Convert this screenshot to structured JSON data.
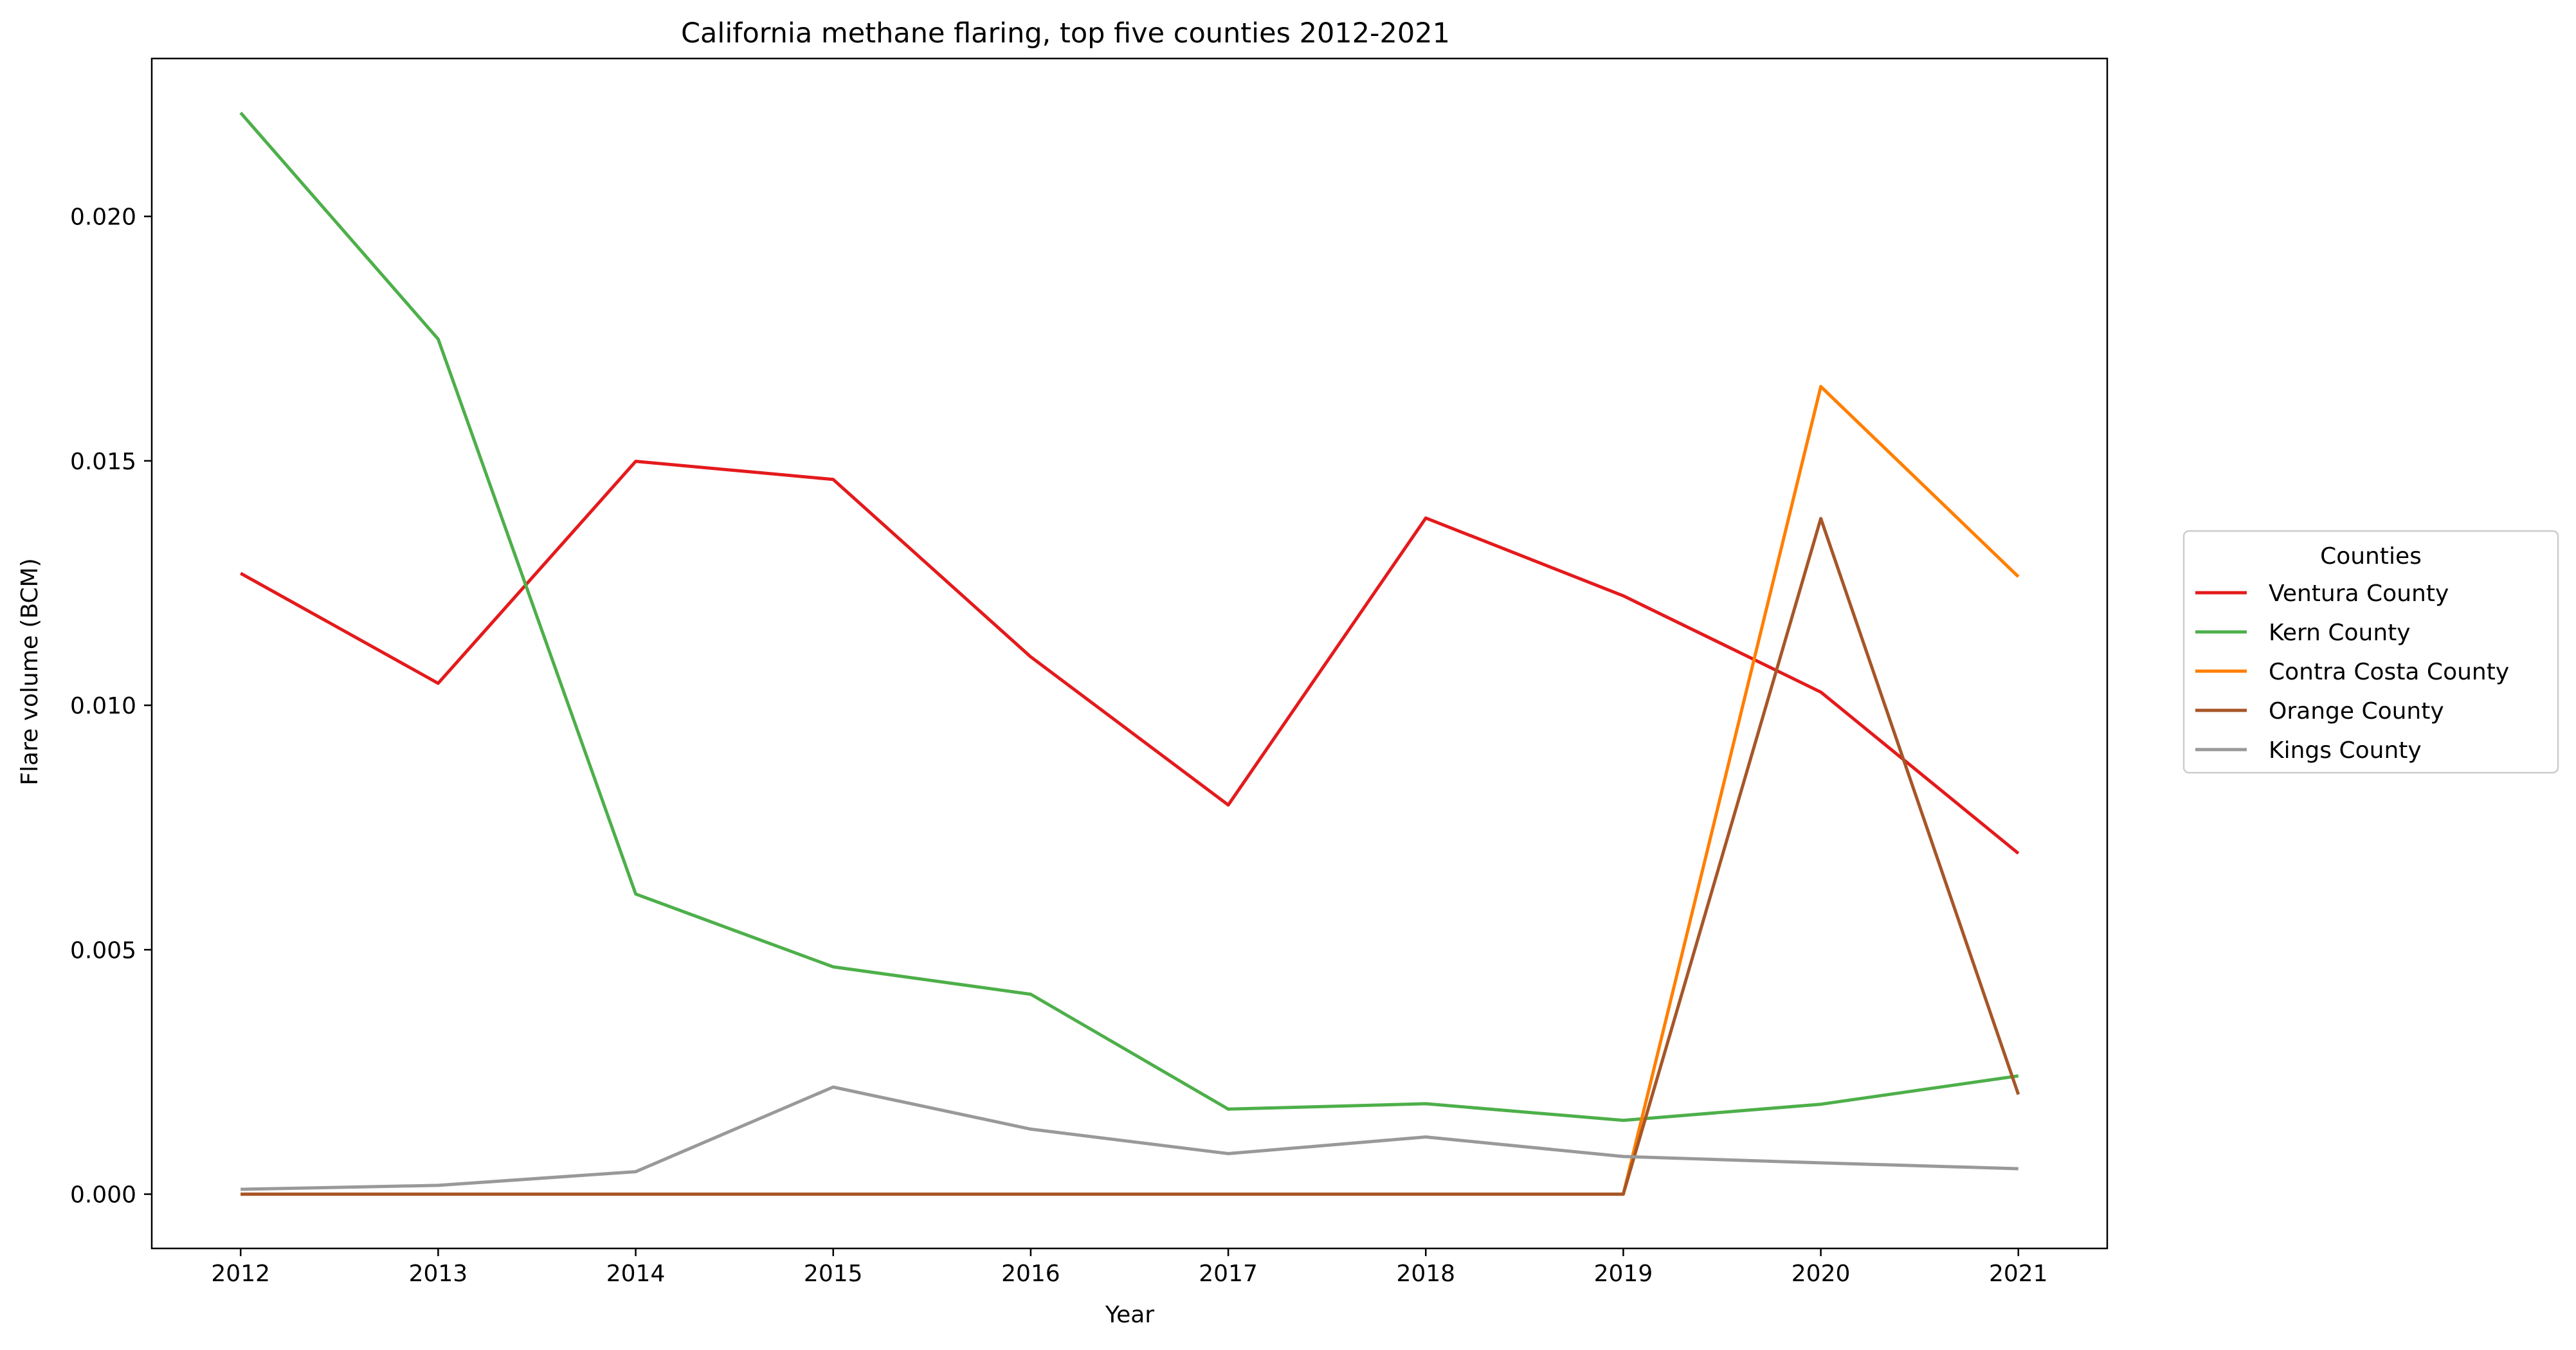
{
  "chart_data": {
    "type": "line",
    "title": "California methane flaring, top five counties 2012-2021",
    "xlabel": "Year",
    "ylabel": "Flare volume (BCM)",
    "x": [
      2012,
      2013,
      2014,
      2015,
      2016,
      2017,
      2018,
      2019,
      2020,
      2021
    ],
    "xticks": [
      "2012",
      "2013",
      "2014",
      "2015",
      "2016",
      "2017",
      "2018",
      "2019",
      "2020",
      "2021"
    ],
    "xlim": [
      2011.55,
      2021.45
    ],
    "ylim": [
      -0.00111,
      0.02323
    ],
    "yticks": [
      0.0,
      0.005,
      0.01,
      0.015,
      0.02
    ],
    "ytick_labels": [
      "0.000",
      "0.005",
      "0.010",
      "0.015",
      "0.020"
    ],
    "grid": false,
    "legend": {
      "title": "Counties",
      "placement": "center-right outside plot"
    },
    "series": [
      {
        "name": "Ventura County",
        "color": "#e41a1c",
        "values": [
          0.0127,
          0.01045,
          0.01499,
          0.01462,
          0.01099,
          0.00796,
          0.01383,
          0.01224,
          0.01027,
          0.00697
        ]
      },
      {
        "name": "Kern County",
        "color": "#4daf4a",
        "values": [
          0.02212,
          0.01749,
          0.00614,
          0.00465,
          0.00409,
          0.00174,
          0.00185,
          0.00151,
          0.00184,
          0.00242
        ]
      },
      {
        "name": "Contra Costa County",
        "color": "#ff7f00",
        "values": [
          0.0,
          0.0,
          0.0,
          0.0,
          0.0,
          0.0,
          0.0,
          0.0,
          0.01652,
          0.01263
        ]
      },
      {
        "name": "Orange County",
        "color": "#a65628",
        "values": [
          0.0,
          0.0,
          0.0,
          0.0,
          0.0,
          0.0,
          0.0,
          0.0,
          0.01382,
          0.00204
        ]
      },
      {
        "name": "Kings County",
        "color": "#999999",
        "values": [
          0.0001,
          0.00018,
          0.00046,
          0.00219,
          0.00133,
          0.00083,
          0.00117,
          0.00077,
          0.00064,
          0.00052
        ]
      }
    ]
  }
}
